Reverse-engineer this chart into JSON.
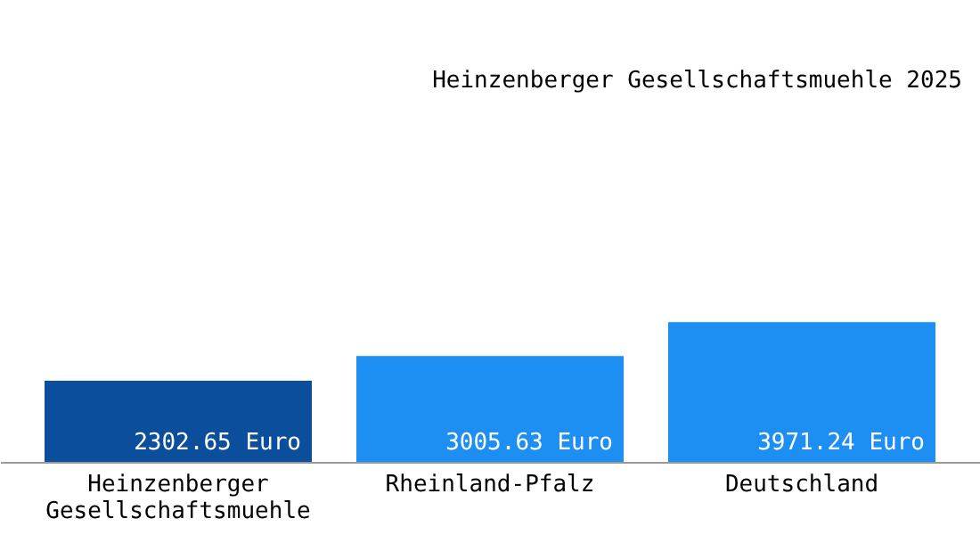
{
  "chart_data": {
    "type": "bar",
    "title": "Heinzenberger Gesellschaftsmuehle 2025",
    "categories": [
      "Heinzenberger Gesellschaftsmuehle",
      "Rheinland-Pfalz",
      "Deutschland"
    ],
    "values": [
      2302.65,
      3005.63,
      3971.24
    ],
    "colors": [
      "#0b4f9c",
      "#1e8ff2",
      "#1e8ff2"
    ],
    "value_labels": [
      "2302.65 Euro",
      "3005.63 Euro",
      "3971.24 Euro"
    ]
  }
}
